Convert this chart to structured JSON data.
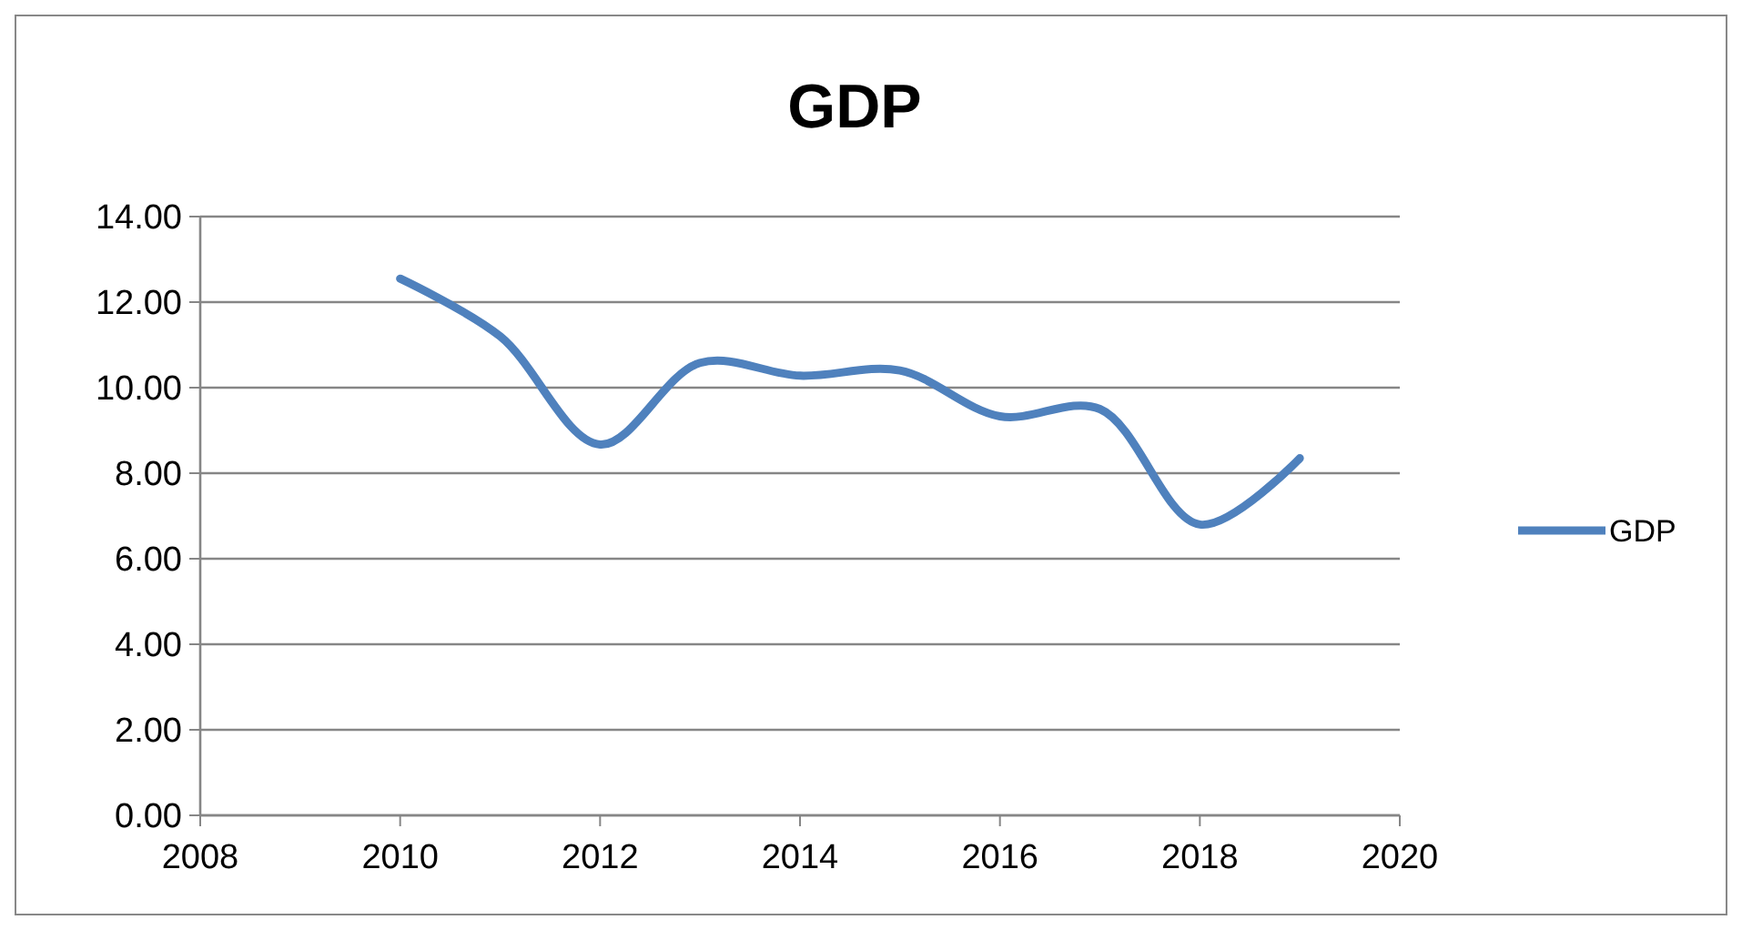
{
  "chart_data": {
    "type": "line",
    "title": "GDP",
    "x": [
      2010,
      2011,
      2012,
      2013,
      2014,
      2015,
      2016,
      2017,
      2018,
      2019
    ],
    "series": [
      {
        "name": "GDP",
        "color": "#4f81bd",
        "values": [
          12.55,
          11.2,
          8.67,
          10.58,
          10.28,
          10.4,
          9.33,
          9.5,
          6.8,
          8.35
        ]
      }
    ],
    "xlim": [
      2008,
      2020
    ],
    "xticks": [
      2008,
      2010,
      2012,
      2014,
      2016,
      2018,
      2020
    ],
    "ylim": [
      0,
      14
    ],
    "yticks": [
      {
        "value": 0,
        "label": "0.00"
      },
      {
        "value": 2,
        "label": "2.00"
      },
      {
        "value": 4,
        "label": "4.00"
      },
      {
        "value": 6,
        "label": "6.00"
      },
      {
        "value": 8,
        "label": "8.00"
      },
      {
        "value": 10,
        "label": "10.00"
      },
      {
        "value": 12,
        "label": "12.00"
      },
      {
        "value": 14,
        "label": "14.00"
      }
    ],
    "grid": "y",
    "legend": "right",
    "marker": "none",
    "line_style": "solid"
  }
}
